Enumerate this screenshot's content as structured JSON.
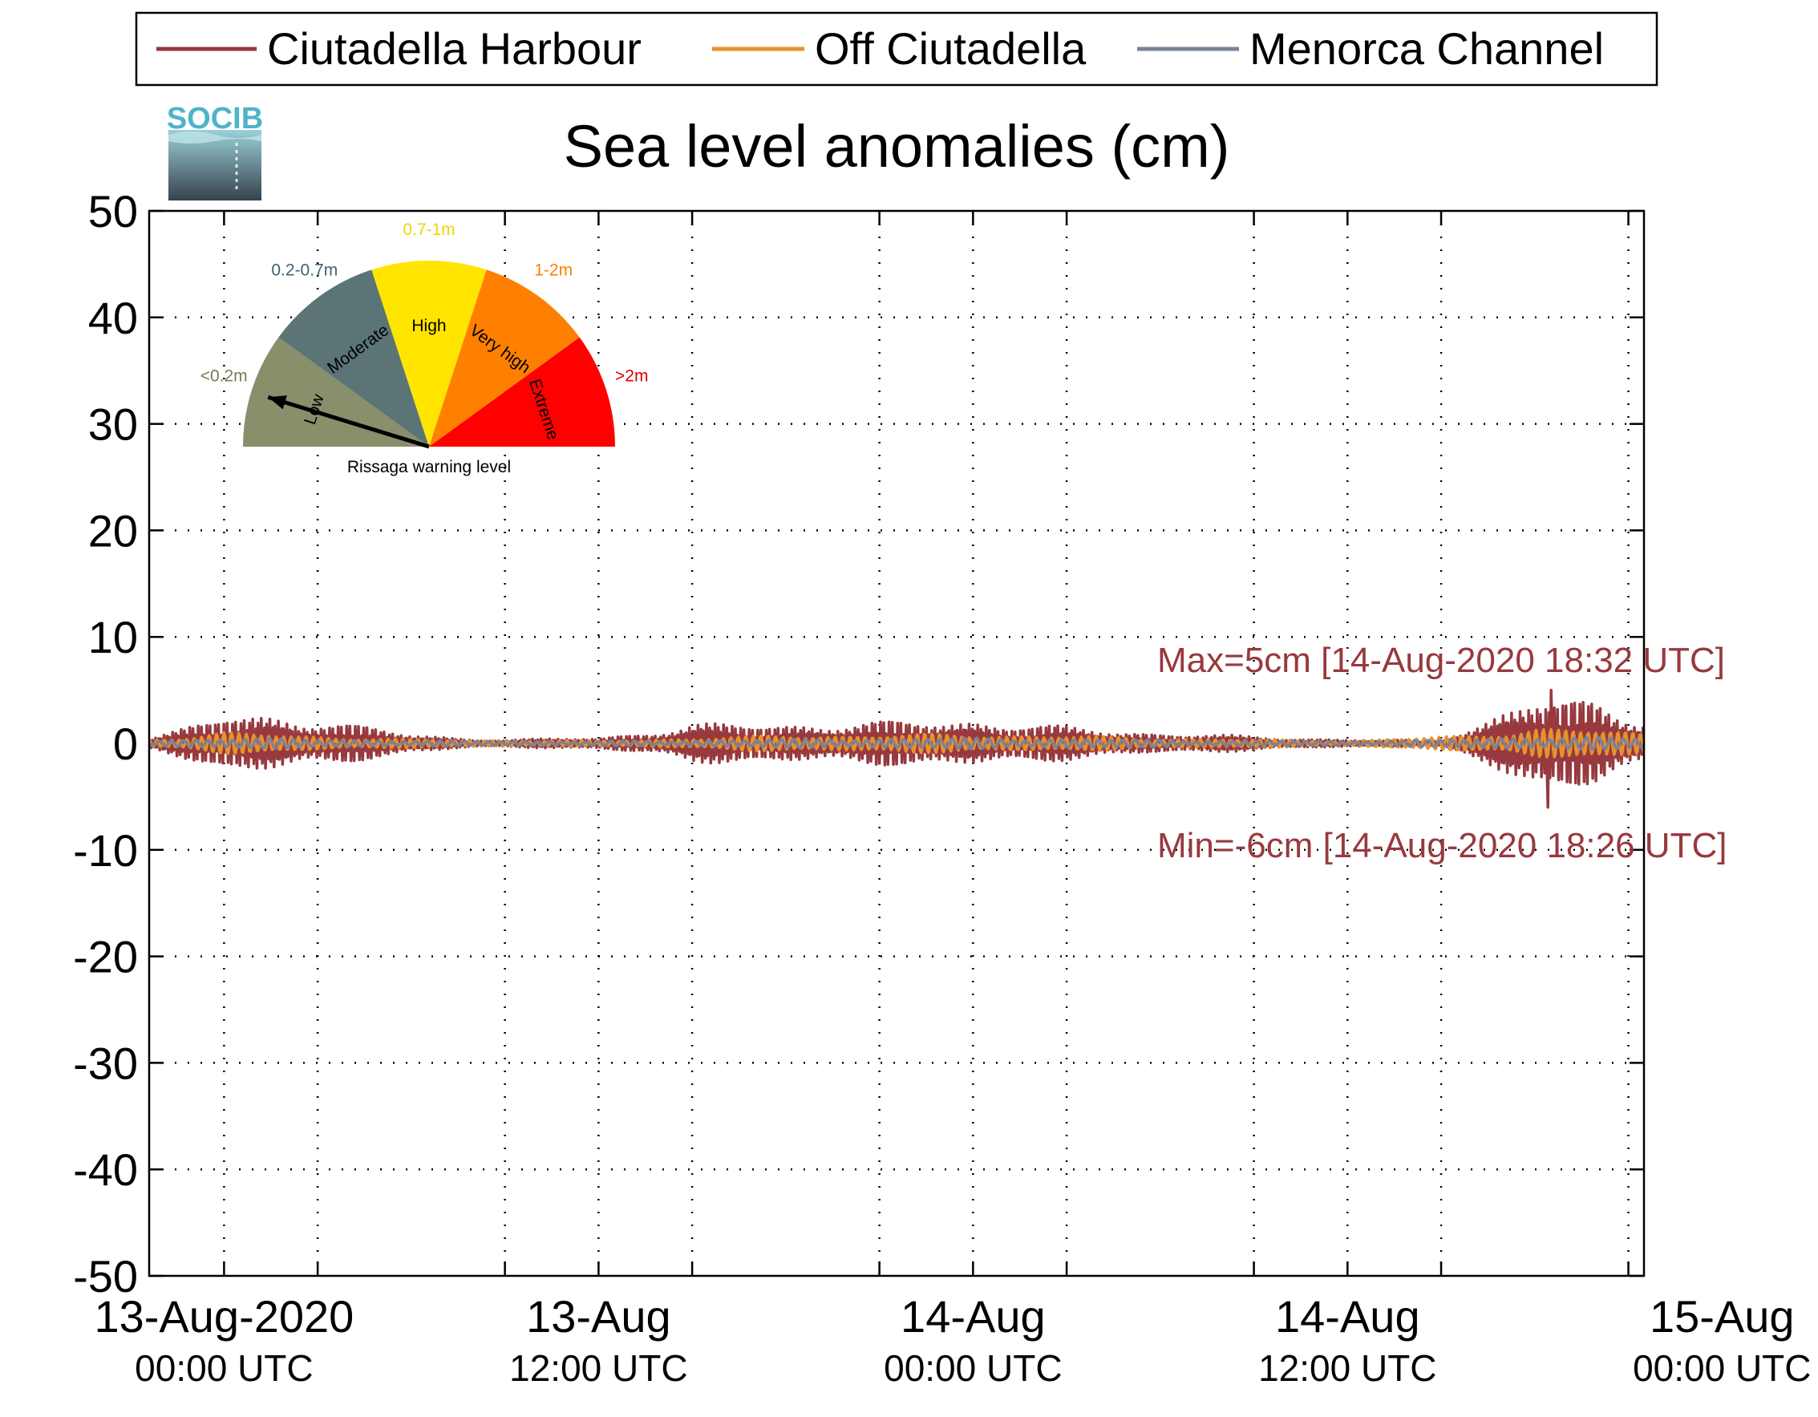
{
  "logo": {
    "text": "SOCIB"
  },
  "legend": {
    "items": [
      {
        "name": "Ciutadella Harbour",
        "color": "#97393e"
      },
      {
        "name": "Off Ciutadella",
        "color": "#e6922e"
      },
      {
        "name": "Menorca Channel",
        "color": "#7a8299"
      }
    ]
  },
  "gauge": {
    "caption": "Rissaga warning level",
    "needle_level": "Low",
    "segments": [
      {
        "label": "Low",
        "range": "<0.2m",
        "color": "#898f6b",
        "range_color": "#7d7a52"
      },
      {
        "label": "Moderate",
        "range": "0.2-0.7m",
        "color": "#5b7576",
        "range_color": "#3f6470"
      },
      {
        "label": "High",
        "range": "0.7-1m",
        "color": "#ffe500",
        "range_color": "#f0d400"
      },
      {
        "label": "Very high",
        "range": "1-2m",
        "color": "#ff8000",
        "range_color": "#ff8000"
      },
      {
        "label": "Extreme",
        "range": ">2m",
        "color": "#ff0000",
        "range_color": "#e00000"
      }
    ]
  },
  "annotations": {
    "max_text": "Max=5cm [14-Aug-2020 18:32 UTC]",
    "min_text": "Min=-6cm [14-Aug-2020 18:26 UTC]",
    "color": "#97393e"
  },
  "chart_data": {
    "type": "line",
    "title": "Sea level anomalies (cm)",
    "xlabel": "",
    "ylabel": "",
    "ylim": [
      -50,
      50
    ],
    "yticks": [
      50,
      40,
      30,
      20,
      10,
      0,
      -10,
      -20,
      -30,
      -40,
      -50
    ],
    "xlim_hours": [
      -2.4,
      45.5
    ],
    "x_tick_labels": [
      {
        "hour": 0,
        "line1": "13-Aug-2020",
        "line2": "00:00 UTC"
      },
      {
        "hour": 12,
        "line1": "13-Aug",
        "line2": "12:00 UTC"
      },
      {
        "hour": 24,
        "line1": "14-Aug",
        "line2": "00:00 UTC"
      },
      {
        "hour": 36,
        "line1": "14-Aug",
        "line2": "12:00 UTC"
      },
      {
        "hour": 48,
        "line1": "15-Aug",
        "line2": "00:00 UTC"
      }
    ],
    "x_minor_ticks_hours": [
      3,
      9,
      15,
      21,
      27,
      33,
      39,
      45
    ],
    "grid": true,
    "legend_position": "top",
    "series": [
      {
        "name": "Ciutadella Harbour",
        "color": "#97393e",
        "envelope_hours": [
          -2.4,
          0,
          3,
          6,
          9,
          12,
          15,
          18,
          21,
          24,
          27,
          30,
          33,
          36,
          39,
          40,
          42,
          44,
          45.5
        ],
        "envelope_amplitude_cm": [
          0.5,
          2.0,
          2.0,
          0.6,
          0.3,
          0.4,
          1.4,
          1.5,
          1.6,
          1.8,
          1.2,
          0.8,
          0.5,
          0.3,
          0.2,
          1.5,
          3.5,
          3.0,
          2.0
        ],
        "max": {
          "value": 5,
          "time": "14-Aug-2020 18:32 UTC"
        },
        "min": {
          "value": -6,
          "time": "14-Aug-2020 18:26 UTC"
        }
      },
      {
        "name": "Off Ciutadella",
        "color": "#e6922e",
        "envelope_hours": [
          -2.4,
          0,
          6,
          12,
          18,
          24,
          30,
          36,
          40,
          42,
          45.5
        ],
        "envelope_amplitude_cm": [
          0.3,
          0.8,
          0.3,
          0.2,
          0.6,
          0.7,
          0.4,
          0.2,
          0.6,
          1.2,
          0.8
        ]
      },
      {
        "name": "Menorca Channel",
        "color": "#7a8299",
        "envelope_hours": [
          -2.4,
          0,
          6,
          12,
          18,
          24,
          30,
          36,
          40,
          42,
          45.5
        ],
        "envelope_amplitude_cm": [
          0.2,
          0.4,
          0.2,
          0.15,
          0.3,
          0.4,
          0.25,
          0.15,
          0.3,
          0.5,
          0.4
        ]
      }
    ]
  }
}
